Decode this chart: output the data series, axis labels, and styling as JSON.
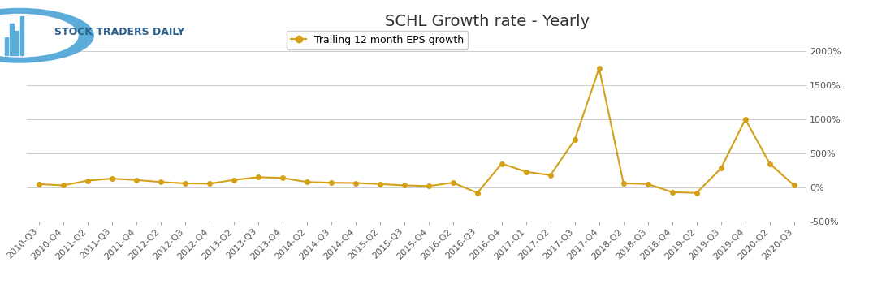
{
  "title": "SCHL Growth rate - Yearly",
  "legend_label": "Trailing 12 month EPS growth",
  "line_color": "#D4A017",
  "marker_color": "#D4A017",
  "background_color": "#FFFFFF",
  "grid_color": "#CCCCCC",
  "ylim": [
    -500,
    2000
  ],
  "yticks": [
    -500,
    0,
    500,
    1000,
    1500,
    2000
  ],
  "ytick_labels": [
    "-500%",
    "0%",
    "500%",
    "1000%",
    "1500%",
    "2000%"
  ],
  "labels": [
    "2010-Q3",
    "2010-Q4",
    "2011-Q2",
    "2011-Q3",
    "2011-Q4",
    "2012-Q2",
    "2012-Q3",
    "2012-Q4",
    "2013-Q2",
    "2013-Q3",
    "2013-Q4",
    "2014-Q2",
    "2014-Q3",
    "2014-Q4",
    "2015-Q2",
    "2015-Q3",
    "2015-Q4",
    "2016-Q2",
    "2016-Q3",
    "2016-Q4",
    "2017-Q1",
    "2017-Q2",
    "2017-Q3",
    "2017-Q4",
    "2018-Q2",
    "2018-Q3",
    "2018-Q4",
    "2019-Q2",
    "2019-Q3",
    "2019-Q4",
    "2020-Q2",
    "2020-Q3"
  ],
  "values": [
    50,
    30,
    100,
    130,
    110,
    80,
    60,
    55,
    110,
    150,
    140,
    80,
    70,
    65,
    50,
    30,
    20,
    70,
    -80,
    350,
    230,
    180,
    700,
    1750,
    60,
    50,
    -70,
    -80,
    280,
    1000,
    350,
    30
  ],
  "logo_text": "STOCK TRADERS DAILY",
  "title_fontsize": 14,
  "tick_fontsize": 8,
  "legend_fontsize": 9
}
